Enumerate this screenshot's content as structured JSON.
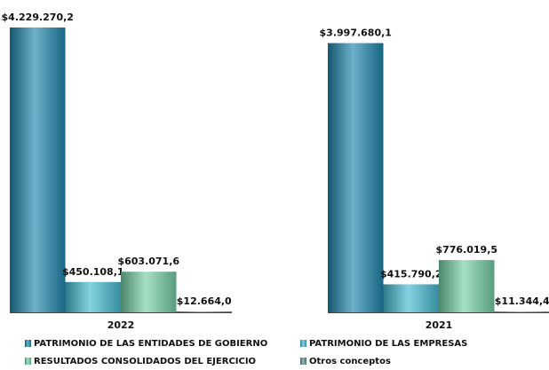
{
  "chart_data": {
    "type": "bar",
    "categories": [
      "2022",
      "2021"
    ],
    "series": [
      {
        "name": "PATRIMONIO DE LAS ENTIDADES DE GOBIERNO",
        "color": "#1e86ad",
        "values": [
          4229270.2,
          3997680.1
        ],
        "value_labels": [
          "$4.229.270,2",
          "$3.997.680,1"
        ]
      },
      {
        "name": "PATRIMONIO DE LAS EMPRESAS",
        "color": "#45bcd3",
        "values": [
          450108.1,
          415790.2
        ],
        "value_labels": [
          "$450.108,1",
          "$415.790,2"
        ]
      },
      {
        "name": "RESULTADOS CONSOLIDADOS DEL EJERCICIO",
        "color": "#74cfa6",
        "values": [
          603071.6,
          776019.5
        ],
        "value_labels": [
          "$603.071,6",
          "$776.019,5"
        ]
      },
      {
        "name": "Otros conceptos",
        "color": "#5e8f8c",
        "values": [
          12664.0,
          11344.4
        ],
        "value_labels": [
          "$12.664,0",
          "$11.344,4"
        ]
      }
    ],
    "legend": "bottom"
  }
}
